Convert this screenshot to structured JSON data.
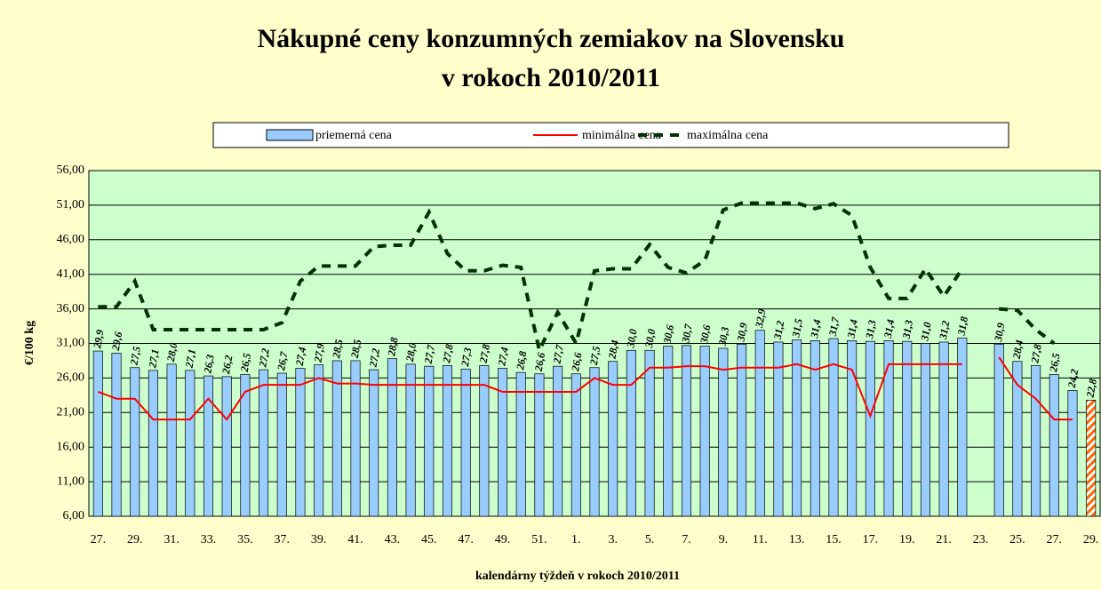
{
  "chart_data": {
    "type": "bar",
    "title": [
      "Nákupné ceny konzumných zemiakov na Slovensku",
      "v rokoch 2010/2011"
    ],
    "y_label": "€/100 kg",
    "x_label": "kalendárny týždeň v rokoch 2010/2011",
    "categories": [
      "27.",
      null,
      "29.",
      null,
      "31.",
      null,
      "33.",
      null,
      "35.",
      null,
      "37.",
      null,
      "39.",
      null,
      "41.",
      null,
      "43.",
      null,
      "45.",
      null,
      "47.",
      null,
      "49.",
      null,
      "51.",
      null,
      "1.",
      null,
      "3.",
      null,
      "5.",
      null,
      "7.",
      null,
      "9.",
      null,
      "11.",
      null,
      "13.",
      null,
      "15.",
      null,
      "17.",
      null,
      "19.",
      null,
      "21.",
      null,
      "23.",
      null,
      "25.",
      null,
      "27.",
      null,
      "29."
    ],
    "ylim": [
      6,
      56
    ],
    "yticks": [
      {
        "value": 6,
        "label": "6,00"
      },
      {
        "value": 11,
        "label": "11,00"
      },
      {
        "value": 16,
        "label": "16,00"
      },
      {
        "value": 21,
        "label": "21,00"
      },
      {
        "value": 26,
        "label": "26,00"
      },
      {
        "value": 31,
        "label": "31,00"
      },
      {
        "value": 36,
        "label": "36,00"
      },
      {
        "value": 41,
        "label": "41,00"
      },
      {
        "value": 46,
        "label": "46,00"
      },
      {
        "value": 51,
        "label": "51,00"
      },
      {
        "value": 56,
        "label": "56,00"
      }
    ],
    "grid": true,
    "legend": "top",
    "highlight_color": "#ff6600",
    "series": [
      {
        "name": "priemerná cena",
        "type": "bar",
        "color": "#99ccff",
        "values": [
          29.9,
          29.6,
          27.5,
          27.1,
          28.0,
          27.1,
          26.3,
          26.2,
          26.5,
          27.2,
          26.7,
          27.4,
          27.9,
          28.5,
          28.5,
          27.2,
          28.8,
          28.0,
          27.7,
          27.8,
          27.3,
          27.8,
          27.4,
          26.8,
          26.6,
          27.7,
          26.6,
          27.5,
          28.4,
          30.0,
          30.0,
          30.6,
          30.7,
          30.6,
          30.3,
          30.9,
          32.9,
          31.2,
          31.5,
          31.4,
          31.7,
          31.4,
          31.3,
          31.4,
          31.3,
          31.0,
          31.2,
          31.8,
          null,
          30.9,
          28.4,
          27.8,
          26.5,
          24.2,
          22.8
        ],
        "value_labels": [
          "29,9",
          "29,6",
          "27,5",
          "27,1",
          "28,0",
          "27,1",
          "26,3",
          "26,2",
          "26,5",
          "27,2",
          "26,7",
          "27,4",
          "27,9",
          "28,5",
          "28,5",
          "27,2",
          "28,8",
          "28,0",
          "27,7",
          "27,8",
          "27,3",
          "27,8",
          "27,4",
          "26,8",
          "26,6",
          "27,7",
          "26,6",
          "27,5",
          "28,4",
          "30,0",
          "30,0",
          "30,6",
          "30,7",
          "30,6",
          "30,3",
          "30,9",
          "32,9",
          "31,2",
          "31,5",
          "31,4",
          "31,7",
          "31,4",
          "31,3",
          "31,4",
          "31,3",
          "31,0",
          "31,2",
          "31,8",
          null,
          "30,9",
          "28,4",
          "27,8",
          "26,5",
          "24,2",
          "22,8"
        ]
      },
      {
        "name": "minimálna cena",
        "type": "line",
        "color": "#ff0000",
        "values": [
          24,
          23,
          23,
          20,
          20,
          20,
          23,
          20,
          24,
          25,
          25,
          25,
          26,
          25.2,
          25.2,
          25,
          25,
          25,
          25,
          25,
          25,
          25,
          24,
          24,
          24,
          24,
          24,
          26,
          25,
          25,
          27.5,
          27.5,
          27.7,
          27.7,
          27.2,
          27.5,
          27.5,
          27.5,
          28,
          27.2,
          28,
          27.2,
          20.5,
          28,
          28,
          28,
          28,
          28,
          null,
          29,
          25,
          23,
          20,
          20,
          null
        ]
      },
      {
        "name": "maximálna cena",
        "type": "line",
        "dashed": true,
        "color": "#003300",
        "values": [
          36.3,
          36.3,
          40,
          33,
          33,
          33,
          33,
          33,
          33,
          33,
          34,
          40,
          42.2,
          42.2,
          42.2,
          45,
          45.2,
          45.2,
          50,
          44,
          41.5,
          41.5,
          42.3,
          42,
          30,
          35.5,
          31,
          41.5,
          41.8,
          41.8,
          45.3,
          42,
          41.2,
          43,
          50.3,
          51.3,
          51.3,
          51.3,
          51.3,
          50.5,
          51.2,
          49.5,
          42,
          37.5,
          37.5,
          41.8,
          37.8,
          41.8,
          null,
          36,
          35.8,
          33,
          31,
          null,
          null
        ]
      }
    ]
  }
}
